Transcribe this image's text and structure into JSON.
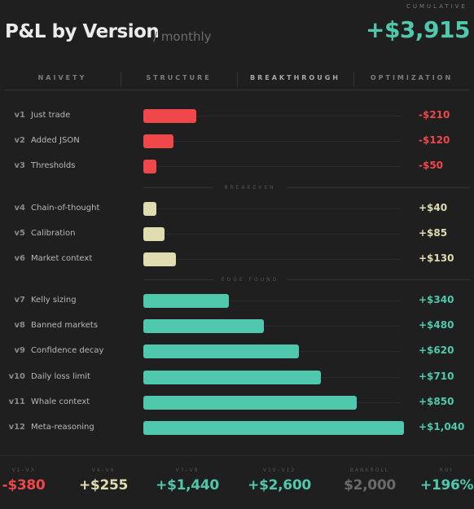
{
  "header": {
    "title": "P&L by Version",
    "subtitle": "/ monthly",
    "cumulative_label": "CUMULATIVE",
    "cumulative_value": "+$3,915"
  },
  "tabs": [
    {
      "label": "NAIVETY",
      "active": false
    },
    {
      "label": "STRUCTURE",
      "active": false
    },
    {
      "label": "BREAKTHROUGH",
      "active": true
    },
    {
      "label": "OPTIMIZATION",
      "active": false
    }
  ],
  "sections": [
    {
      "label": "BREAKEVEN"
    },
    {
      "label": "EDGE FOUND"
    }
  ],
  "chart_data": {
    "type": "bar",
    "orientation": "horizontal",
    "title": "P&L by Version",
    "categories": [
      "Just trade",
      "Added JSON",
      "Thresholds",
      "Chain-of-thought",
      "Calibration",
      "Market context",
      "Kelly sizing",
      "Banned markets",
      "Confidence decay",
      "Daily loss limit",
      "Whale context",
      "Meta-reasoning"
    ],
    "versions": [
      "v1",
      "v2",
      "v3",
      "v4",
      "v5",
      "v6",
      "v7",
      "v8",
      "v9",
      "v10",
      "v11",
      "v12"
    ],
    "values": [
      -210,
      -120,
      -50,
      40,
      85,
      130,
      340,
      480,
      620,
      710,
      850,
      1040
    ],
    "value_labels": [
      "-$210",
      "-$120",
      "-$50",
      "+$40",
      "+$85",
      "+$130",
      "+$340",
      "+$480",
      "+$620",
      "+$710",
      "+$850",
      "+$1,040"
    ],
    "groups": [
      "loss",
      "loss",
      "loss",
      "breakeven",
      "breakeven",
      "breakeven",
      "edge",
      "edge",
      "edge",
      "edge",
      "edge",
      "edge"
    ],
    "colors": {
      "loss": "#f0474a",
      "breakeven": "#dedcb0",
      "edge": "#4fc8ad"
    },
    "xlim": [
      0,
      1040
    ]
  },
  "footer": {
    "stats": [
      {
        "label": "V1–V3",
        "value": "-$380",
        "color": "#f0474a"
      },
      {
        "label": "V4–V6",
        "value": "+$255",
        "color": "#dedcb0"
      },
      {
        "label": "V7–V9",
        "value": "+$1,440",
        "color": "#4fc8ad"
      },
      {
        "label": "V10–V12",
        "value": "+$2,600",
        "color": "#4fc8ad"
      },
      {
        "label": "BANKROLL",
        "value": "$2,000",
        "color": "#6a6a6a"
      },
      {
        "label": "ROI",
        "value": "+196%",
        "color": "#4fc8ad"
      }
    ]
  }
}
